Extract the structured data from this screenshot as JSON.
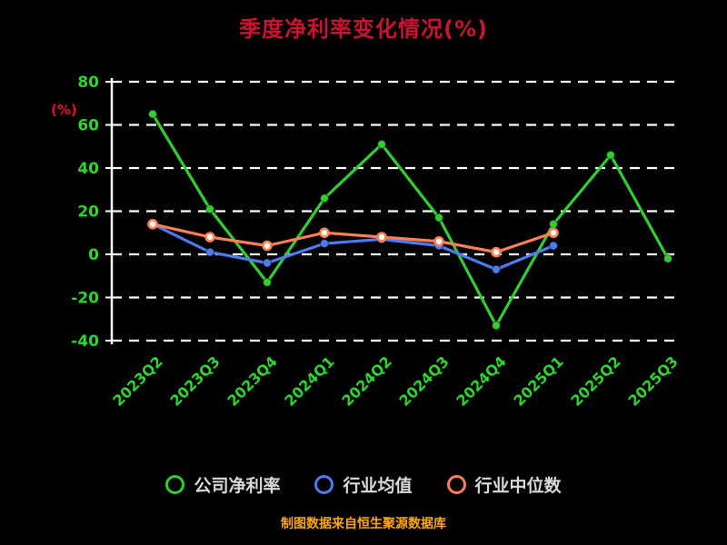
{
  "footer": "制图数据来自恒生聚源数据库",
  "colors": {
    "background": "#000000",
    "title": "#c9132f",
    "y_axis_unit": "#e01030",
    "ticks": "#2ed52e",
    "grid": "#ffffff",
    "axis": "#ffffff",
    "legend_text": "#d9d9d9",
    "footer": "#ffa800",
    "series_company": "#33cc33",
    "series_industry_mean": "#4d7bf0",
    "series_industry_median": "#ff8055"
  },
  "chart_data": {
    "type": "line",
    "title": "季度净利率变化情况(%)",
    "xlabel": "",
    "ylabel": "(%)",
    "categories": [
      "2023Q2",
      "2023Q3",
      "2023Q4",
      "2024Q1",
      "2024Q2",
      "2024Q3",
      "2024Q4",
      "2025Q1",
      "2025Q2",
      "2025Q3"
    ],
    "series": [
      {
        "name": "公司净利率",
        "color": "#33cc33",
        "marker": "solid",
        "values": [
          65,
          21,
          -13,
          26,
          51,
          17,
          -33,
          14,
          46,
          -2
        ]
      },
      {
        "name": "行业均值",
        "color": "#4d7bf0",
        "marker": "solid",
        "values": [
          14,
          1,
          -4,
          5,
          7,
          4,
          -7,
          4,
          null,
          null
        ]
      },
      {
        "name": "行业中位数",
        "color": "#ff8055",
        "marker": "ring",
        "values": [
          14,
          8,
          4,
          10,
          8,
          6,
          1,
          10,
          null,
          null
        ]
      }
    ],
    "yticks": [
      80,
      60,
      40,
      20,
      0,
      -20,
      -40
    ],
    "ylim": [
      -40,
      80
    ],
    "grid": "dashed-horizontal",
    "legend_position": "bottom"
  }
}
